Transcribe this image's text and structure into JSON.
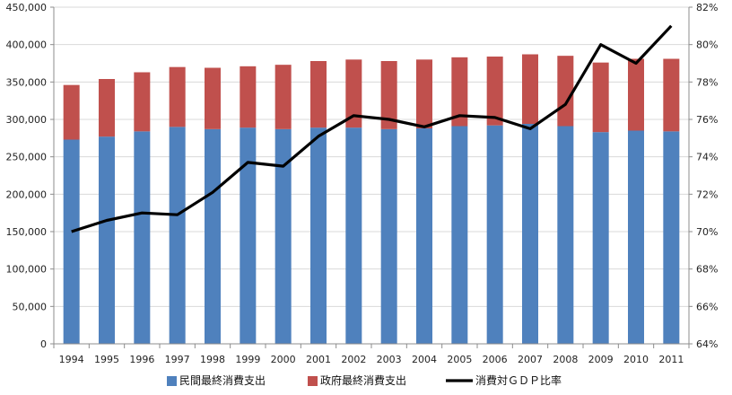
{
  "chart_data": {
    "type": "bar",
    "stacked": true,
    "categories": [
      "1994",
      "1995",
      "1996",
      "1997",
      "1998",
      "1999",
      "2000",
      "2001",
      "2002",
      "2003",
      "2004",
      "2005",
      "2006",
      "2007",
      "2008",
      "2009",
      "2010",
      "2011"
    ],
    "series": [
      {
        "name": "民間最終消費支出",
        "type": "bar",
        "axis": "left",
        "color": "#4f81bd",
        "values": [
          273000,
          277000,
          284000,
          290000,
          287000,
          289000,
          287000,
          289000,
          289000,
          287000,
          288000,
          291000,
          292000,
          294000,
          291000,
          283000,
          285000,
          284000
        ]
      },
      {
        "name": "政府最終消費支出",
        "type": "bar",
        "axis": "left",
        "color": "#c0504d",
        "values": [
          73000,
          77000,
          79000,
          80000,
          82000,
          82000,
          86000,
          89000,
          91000,
          91000,
          92000,
          92000,
          92000,
          93000,
          94000,
          93000,
          96000,
          97000
        ]
      },
      {
        "name": "消費対ＧＤＰ比率",
        "type": "line",
        "axis": "right",
        "color": "#000000",
        "values": [
          70.0,
          70.6,
          71.0,
          70.9,
          72.1,
          73.7,
          73.5,
          75.1,
          76.2,
          76.0,
          75.6,
          76.2,
          76.1,
          75.5,
          76.8,
          80.0,
          79.0,
          81.0
        ]
      }
    ],
    "yleft": {
      "lim": [
        0,
        450000
      ],
      "ticks": [
        "0",
        "50,000",
        "100,000",
        "150,000",
        "200,000",
        "250,000",
        "300,000",
        "350,000",
        "400,000",
        "450,000"
      ]
    },
    "yright": {
      "lim": [
        64,
        82
      ],
      "ticks": [
        "64%",
        "66%",
        "68%",
        "70%",
        "72%",
        "74%",
        "76%",
        "78%",
        "80%",
        "82%"
      ]
    },
    "grid": "horizontal",
    "legend": "bottom"
  }
}
